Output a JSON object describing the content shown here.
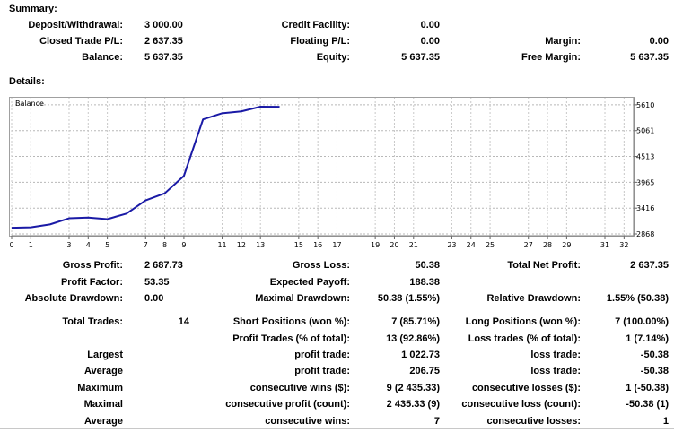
{
  "summary": {
    "heading": "Summary:",
    "deposit_label": "Deposit/Withdrawal:",
    "deposit_value": "3 000.00",
    "credit_label": "Credit Facility:",
    "credit_value": "0.00",
    "closed_label": "Closed Trade P/L:",
    "closed_value": "2 637.35",
    "floating_label": "Floating P/L:",
    "floating_value": "0.00",
    "margin_label": "Margin:",
    "margin_value": "0.00",
    "balance_label": "Balance:",
    "balance_value": "5 637.35",
    "equity_label": "Equity:",
    "equity_value": "5 637.35",
    "free_margin_label": "Free Margin:",
    "free_margin_value": "5 637.35"
  },
  "details": {
    "heading": "Details:"
  },
  "chart_data": {
    "type": "line",
    "title": "Balance",
    "x": [
      0,
      1,
      2,
      3,
      4,
      5,
      6,
      7,
      8,
      9,
      10,
      11,
      12,
      13,
      14
    ],
    "series": [
      {
        "name": "Balance",
        "values": [
          3000,
          3008,
          3070,
          3200,
          3215,
          3182,
          3300,
          3580,
          3730,
          4100,
          5300,
          5430,
          5470,
          5570,
          5567
        ]
      }
    ],
    "xticks": [
      0,
      1,
      3,
      4,
      5,
      7,
      8,
      9,
      11,
      12,
      13,
      15,
      16,
      17,
      19,
      20,
      21,
      23,
      24,
      25,
      27,
      28,
      29,
      31,
      32
    ],
    "yticks": [
      2868,
      3416,
      3965,
      4513,
      5061,
      5610
    ],
    "xlim": [
      0,
      32.5
    ],
    "ylim": [
      2830,
      5760
    ],
    "grid": true,
    "line_color": "#1a1aa6"
  },
  "stats": {
    "gross_profit_label": "Gross Profit:",
    "gross_profit_value": "2 687.73",
    "gross_loss_label": "Gross Loss:",
    "gross_loss_value": "50.38",
    "total_net_label": "Total Net Profit:",
    "total_net_value": "2 637.35",
    "profit_factor_label": "Profit Factor:",
    "profit_factor_value": "53.35",
    "expected_payoff_label": "Expected Payoff:",
    "expected_payoff_value": "188.38",
    "abs_dd_label": "Absolute Drawdown:",
    "abs_dd_value": "0.00",
    "max_dd_label": "Maximal Drawdown:",
    "max_dd_value": "50.38 (1.55%)",
    "rel_dd_label": "Relative Drawdown:",
    "rel_dd_value": "1.55% (50.38)",
    "total_trades_label": "Total Trades:",
    "total_trades_value": "14",
    "short_label": "Short Positions (won %):",
    "short_value": "7 (85.71%)",
    "long_label": "Long Positions (won %):",
    "long_value": "7 (100.00%)",
    "profit_trades_label": "Profit Trades (% of total):",
    "profit_trades_value": "13 (92.86%)",
    "loss_trades_label": "Loss trades (% of total):",
    "loss_trades_value": "1 (7.14%)",
    "largest_label": "Largest",
    "largest_profit_label": "profit trade:",
    "largest_profit_value": "1 022.73",
    "largest_loss_label": "loss trade:",
    "largest_loss_value": "-50.38",
    "average_label": "Average",
    "average_profit_label": "profit trade:",
    "average_profit_value": "206.75",
    "average_loss_label": "loss trade:",
    "average_loss_value": "-50.38",
    "maximum_label": "Maximum",
    "max_consec_wins_label": "consecutive wins ($):",
    "max_consec_wins_value": "9 (2 435.33)",
    "max_consec_losses_label": "consecutive losses ($):",
    "max_consec_losses_value": "1 (-50.38)",
    "maximal_label": "Maximal",
    "maximal_profit_label": "consecutive profit (count):",
    "maximal_profit_value": "2 435.33 (9)",
    "maximal_loss_label": "consecutive loss (count):",
    "maximal_loss_value": "-50.38 (1)",
    "average2_label": "Average",
    "avg_consec_wins_label": "consecutive wins:",
    "avg_consec_wins_value": "7",
    "avg_consec_losses_label": "consecutive losses:",
    "avg_consec_losses_value": "1"
  }
}
